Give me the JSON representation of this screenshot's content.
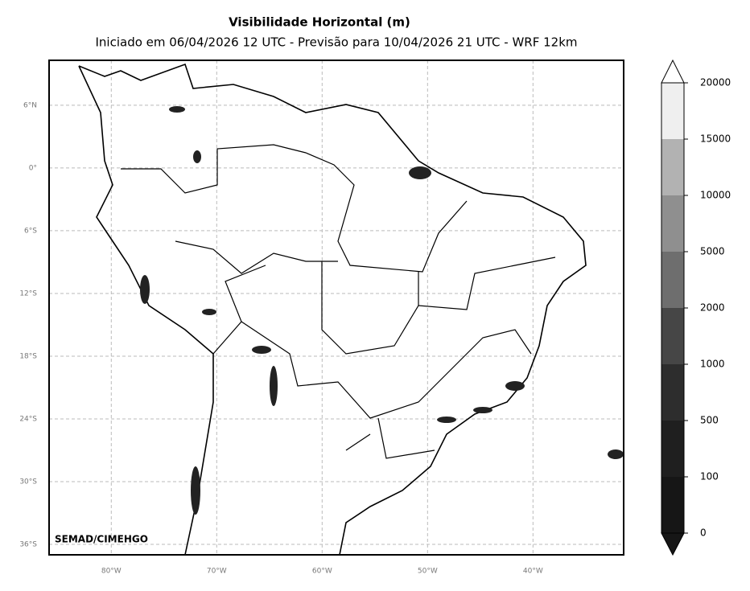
{
  "title": "Visibilidade Horizontal (m)",
  "subtitle": "Iniciado em 06/04/2026 12 UTC - Previsão para 10/04/2026 21 UTC - WRF 12km",
  "credit": "SEMAD/CIMEHGO",
  "map": {
    "lon_range": [
      -85.9,
      -31.4
    ],
    "lat_range": [
      -37,
      10.3
    ],
    "lon_ticks": [
      {
        "value": -80,
        "label": "80°W"
      },
      {
        "value": -70,
        "label": "70°W"
      },
      {
        "value": -60,
        "label": "60°W"
      },
      {
        "value": -50,
        "label": "50°W"
      },
      {
        "value": -40,
        "label": "40°W"
      }
    ],
    "lat_ticks": [
      {
        "value": 6,
        "label": "6°N"
      },
      {
        "value": 0,
        "label": "0°"
      },
      {
        "value": -6,
        "label": "6°S"
      },
      {
        "value": -12,
        "label": "12°S"
      },
      {
        "value": -18,
        "label": "18°S"
      },
      {
        "value": -24,
        "label": "24°S"
      },
      {
        "value": -30,
        "label": "30°S"
      },
      {
        "value": -36,
        "label": "36°S"
      }
    ]
  },
  "colorbar": {
    "levels": [
      0,
      100,
      500,
      1000,
      2000,
      5000,
      10000,
      15000,
      20000
    ],
    "colors": [
      "#161616",
      "#1f1f1f",
      "#2d2d2d",
      "#464646",
      "#6e6e6e",
      "#8f8f8f",
      "#b2b2b2",
      "#efefef"
    ]
  }
}
